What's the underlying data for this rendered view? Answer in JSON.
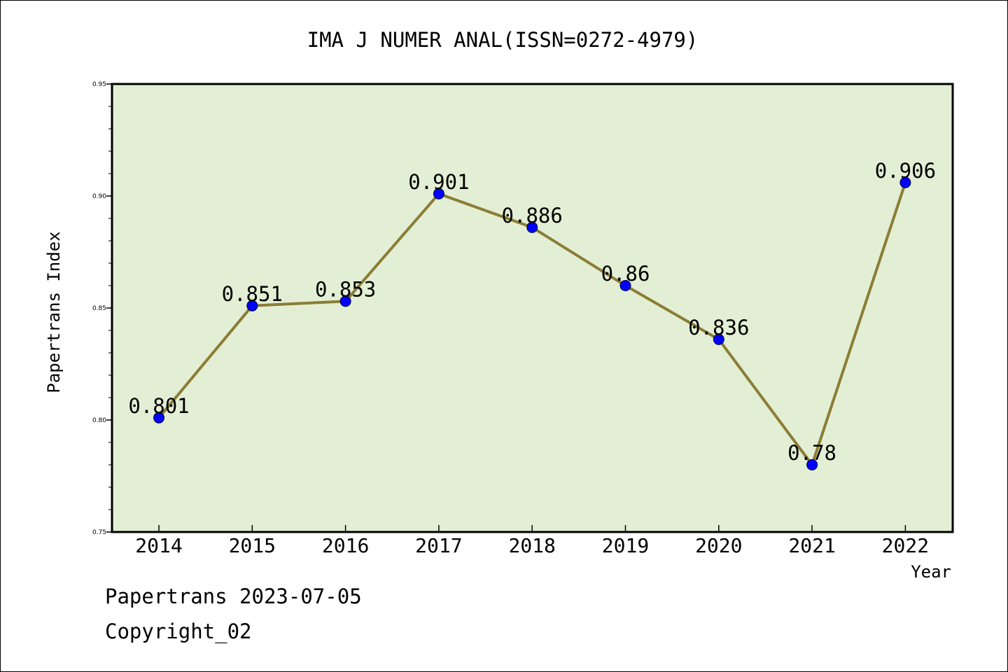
{
  "chart_data": {
    "type": "line",
    "title": "IMA J NUMER ANAL(ISSN=0272-4979)",
    "xlabel": "Year",
    "ylabel": "Papertrans Index",
    "categories": [
      "2014",
      "2015",
      "2016",
      "2017",
      "2018",
      "2019",
      "2020",
      "2021",
      "2022"
    ],
    "series": [
      {
        "values": [
          0.801,
          0.851,
          0.853,
          0.901,
          0.886,
          0.86,
          0.836,
          0.78,
          0.906
        ],
        "labels": [
          "0.801",
          "0.851",
          "0.853",
          "0.901",
          "0.886",
          "0.86",
          "0.836",
          "0.78",
          "0.906"
        ]
      }
    ],
    "ylim": [
      0.75,
      0.95
    ],
    "yticks": [
      "0.75",
      "0.80",
      "0.85",
      "0.90",
      "0.95"
    ],
    "grid": false,
    "colors": {
      "plot_background": "#e2efd4",
      "line": "#8b7d35",
      "marker": "#0000ff"
    }
  },
  "footer": {
    "date_line": "Papertrans 2023-07-05",
    "copyright_line": "Copyright_02"
  }
}
